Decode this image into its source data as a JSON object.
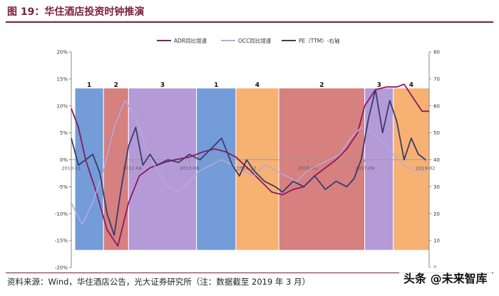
{
  "header": {
    "title": "图 19：华住酒店投资时钟推演"
  },
  "footer": {
    "source": "资料来源：Wind，华住酒店公告，光大证券研究所（注：数据截至 2019 年 3 月）"
  },
  "watermark": {
    "text": "头条 @未来智库"
  },
  "chart_data": {
    "type": "line",
    "title": "",
    "xlabel": "",
    "ylabel": "",
    "left_axis": {
      "ylim": [
        -20,
        20
      ],
      "ticks": [
        "20%",
        "15%",
        "10%",
        "5%",
        "0%",
        "-5%",
        "-10%",
        "-15%",
        "-20%"
      ]
    },
    "right_axis": {
      "ylim": [
        0,
        80
      ],
      "ticks": [
        "80",
        "70",
        "60",
        "50",
        "40",
        "30",
        "20",
        "10",
        "0"
      ]
    },
    "x_range": [
      "2010-11",
      "2019-03"
    ],
    "x_ticks": [
      "2010-11",
      "2012-04",
      "2013-08",
      "2014-12",
      "2016-05",
      "2017-09",
      "2019-02"
    ],
    "legend": [
      "ADR同比增速",
      "OCC同比增速",
      "PE（TTM）-右轴"
    ],
    "colors": {
      "adr": "#8b1a5e",
      "occ": "#b9a8dc",
      "pe": "#3b3b6d",
      "phase1": "#5b8bd1",
      "phase2": "#cf6a6a",
      "phase3": "#a78ad0",
      "phase4": "#f5a35a"
    },
    "phases": [
      {
        "label": "1",
        "start": "2010-12",
        "end": "2011-08",
        "color": "phase1"
      },
      {
        "label": "2",
        "start": "2011-08",
        "end": "2012-03",
        "color": "phase2"
      },
      {
        "label": "3",
        "start": "2012-03",
        "end": "2013-10",
        "color": "phase3"
      },
      {
        "label": "1",
        "start": "2013-10",
        "end": "2014-09",
        "color": "phase1"
      },
      {
        "label": "4",
        "start": "2014-09",
        "end": "2015-09",
        "color": "phase4"
      },
      {
        "label": "2",
        "start": "2015-09",
        "end": "2017-09",
        "color": "phase2"
      },
      {
        "label": "3",
        "start": "2017-09",
        "end": "2018-05",
        "color": "phase3"
      },
      {
        "label": "4",
        "start": "2018-05",
        "end": "2019-03",
        "color": "phase4"
      }
    ],
    "series": [
      {
        "name": "ADR同比增速",
        "axis": "left",
        "color": "adr",
        "x": [
          "2010-11",
          "2011-01",
          "2011-03",
          "2011-06",
          "2011-09",
          "2011-12",
          "2012-03",
          "2012-06",
          "2012-09",
          "2013-01",
          "2013-04",
          "2013-08",
          "2013-12",
          "2014-03",
          "2014-06",
          "2014-09",
          "2015-01",
          "2015-04",
          "2015-07",
          "2015-10",
          "2016-01",
          "2016-04",
          "2016-07",
          "2016-10",
          "2017-01",
          "2017-04",
          "2017-07",
          "2017-09",
          "2017-12",
          "2018-03",
          "2018-06",
          "2018-08",
          "2018-10",
          "2019-01",
          "2019-03"
        ],
        "values": [
          9.5,
          6,
          0,
          -6,
          -13,
          -16,
          -8,
          -3,
          -1.5,
          -0.5,
          0,
          0.5,
          1.5,
          2,
          1.5,
          0.5,
          -2,
          -4,
          -6,
          -6.5,
          -5.5,
          -5,
          -3,
          -1.5,
          0,
          2,
          5,
          10,
          13,
          13.5,
          13.5,
          14,
          12,
          9,
          9
        ]
      },
      {
        "name": "OCC同比增速",
        "axis": "left",
        "color": "occ",
        "x": [
          "2010-11",
          "2011-02",
          "2011-05",
          "2011-08",
          "2011-11",
          "2012-02",
          "2012-05",
          "2012-08",
          "2012-11",
          "2013-02",
          "2013-05",
          "2013-08",
          "2013-11",
          "2014-02",
          "2014-05",
          "2014-08",
          "2014-11",
          "2015-02",
          "2015-05",
          "2015-08",
          "2015-11",
          "2016-02",
          "2016-05",
          "2016-08",
          "2016-11",
          "2017-02",
          "2017-05",
          "2017-08",
          "2017-11",
          "2018-02",
          "2018-05",
          "2018-08",
          "2018-11",
          "2019-02"
        ],
        "values": [
          -8,
          -12,
          -8,
          -2,
          6,
          11,
          8,
          2,
          -2,
          -5,
          -6,
          -4,
          -2,
          -1,
          0,
          -1,
          -2,
          -3,
          -1,
          -2,
          -3,
          -4,
          -2,
          -1,
          0,
          1,
          4,
          6,
          5,
          3,
          1,
          -1,
          -2,
          -2
        ]
      },
      {
        "name": "PE（TTM）-右轴",
        "axis": "right",
        "color": "pe",
        "x": [
          "2010-11",
          "2011-01",
          "2011-03",
          "2011-05",
          "2011-07",
          "2011-09",
          "2011-11",
          "2012-01",
          "2012-03",
          "2012-05",
          "2012-07",
          "2012-09",
          "2012-11",
          "2013-02",
          "2013-05",
          "2013-08",
          "2013-11",
          "2014-02",
          "2014-05",
          "2014-08",
          "2014-10",
          "2014-12",
          "2015-02",
          "2015-05",
          "2015-08",
          "2015-10",
          "2016-01",
          "2016-04",
          "2016-07",
          "2016-10",
          "2017-01",
          "2017-04",
          "2017-06",
          "2017-08",
          "2017-10",
          "2017-12",
          "2018-02",
          "2018-04",
          "2018-06",
          "2018-08",
          "2018-10",
          "2018-12",
          "2019-02"
        ],
        "values": [
          48,
          38,
          40,
          42,
          35,
          20,
          12,
          30,
          45,
          52,
          38,
          42,
          38,
          40,
          39,
          42,
          40,
          44,
          48,
          38,
          34,
          40,
          36,
          32,
          30,
          28,
          32,
          30,
          34,
          29,
          32,
          30,
          33,
          40,
          55,
          66,
          50,
          62,
          54,
          40,
          48,
          42,
          40
        ]
      }
    ]
  }
}
